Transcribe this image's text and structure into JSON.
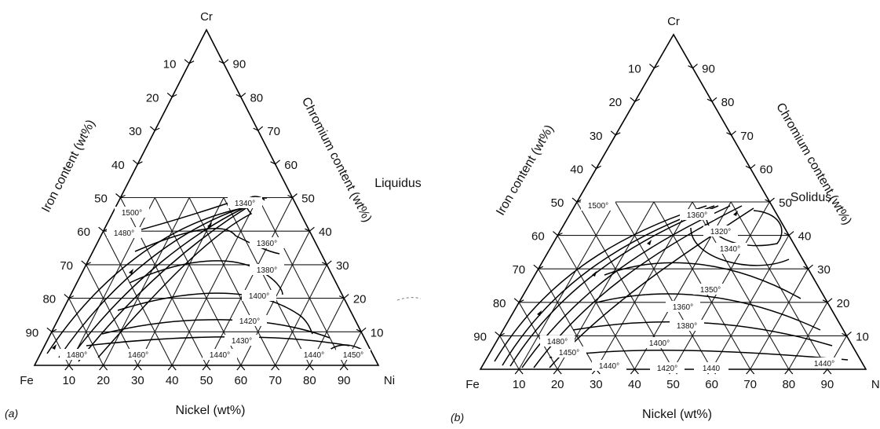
{
  "diagrams": [
    {
      "id": "a",
      "panel_label": "(a)",
      "title": "Liquidus",
      "apex_labels": {
        "top": "Cr",
        "left": "Fe",
        "right": "Ni"
      },
      "axis_titles": {
        "left": "Iron content (wt%)",
        "right": "Chromium content (wt%)",
        "bottom": "Nickel (wt%)"
      },
      "left_ticks": [
        "10",
        "20",
        "30",
        "40",
        "50",
        "60",
        "70",
        "80",
        "90"
      ],
      "right_ticks": [
        "90",
        "80",
        "70",
        "60",
        "50",
        "40",
        "30",
        "20",
        "10"
      ],
      "bottom_ticks": [
        "10",
        "20",
        "30",
        "40",
        "50",
        "60",
        "70",
        "80",
        "90"
      ],
      "isotherms": [
        "1500°",
        "1480°",
        "1340°",
        "1360°",
        "1380°",
        "1400°",
        "1420°",
        "1430°",
        "1480°",
        "1460°",
        "1440°",
        "1440°",
        "1450°"
      ]
    },
    {
      "id": "b",
      "panel_label": "(b)",
      "title": "Solidus",
      "apex_labels": {
        "top": "Cr",
        "left": "Fe",
        "right": "Ni"
      },
      "axis_titles": {
        "left": "Iron content (wt%)",
        "right": "Chromium content (wt%)",
        "bottom": "Nickel (wt%)"
      },
      "left_ticks": [
        "10",
        "20",
        "30",
        "40",
        "50",
        "60",
        "70",
        "80",
        "90"
      ],
      "right_ticks": [
        "90",
        "80",
        "70",
        "60",
        "50",
        "40",
        "30",
        "20",
        "10"
      ],
      "bottom_ticks": [
        "10",
        "20",
        "30",
        "40",
        "50",
        "60",
        "70",
        "80",
        "90"
      ],
      "isotherms": [
        "1500°",
        "1360°",
        "1320°",
        "1340°",
        "1350°",
        "1360°",
        "1380°",
        "1400°",
        "1480°",
        "1450°",
        "1440°",
        "1420°",
        "1440",
        "1440°"
      ]
    }
  ]
}
